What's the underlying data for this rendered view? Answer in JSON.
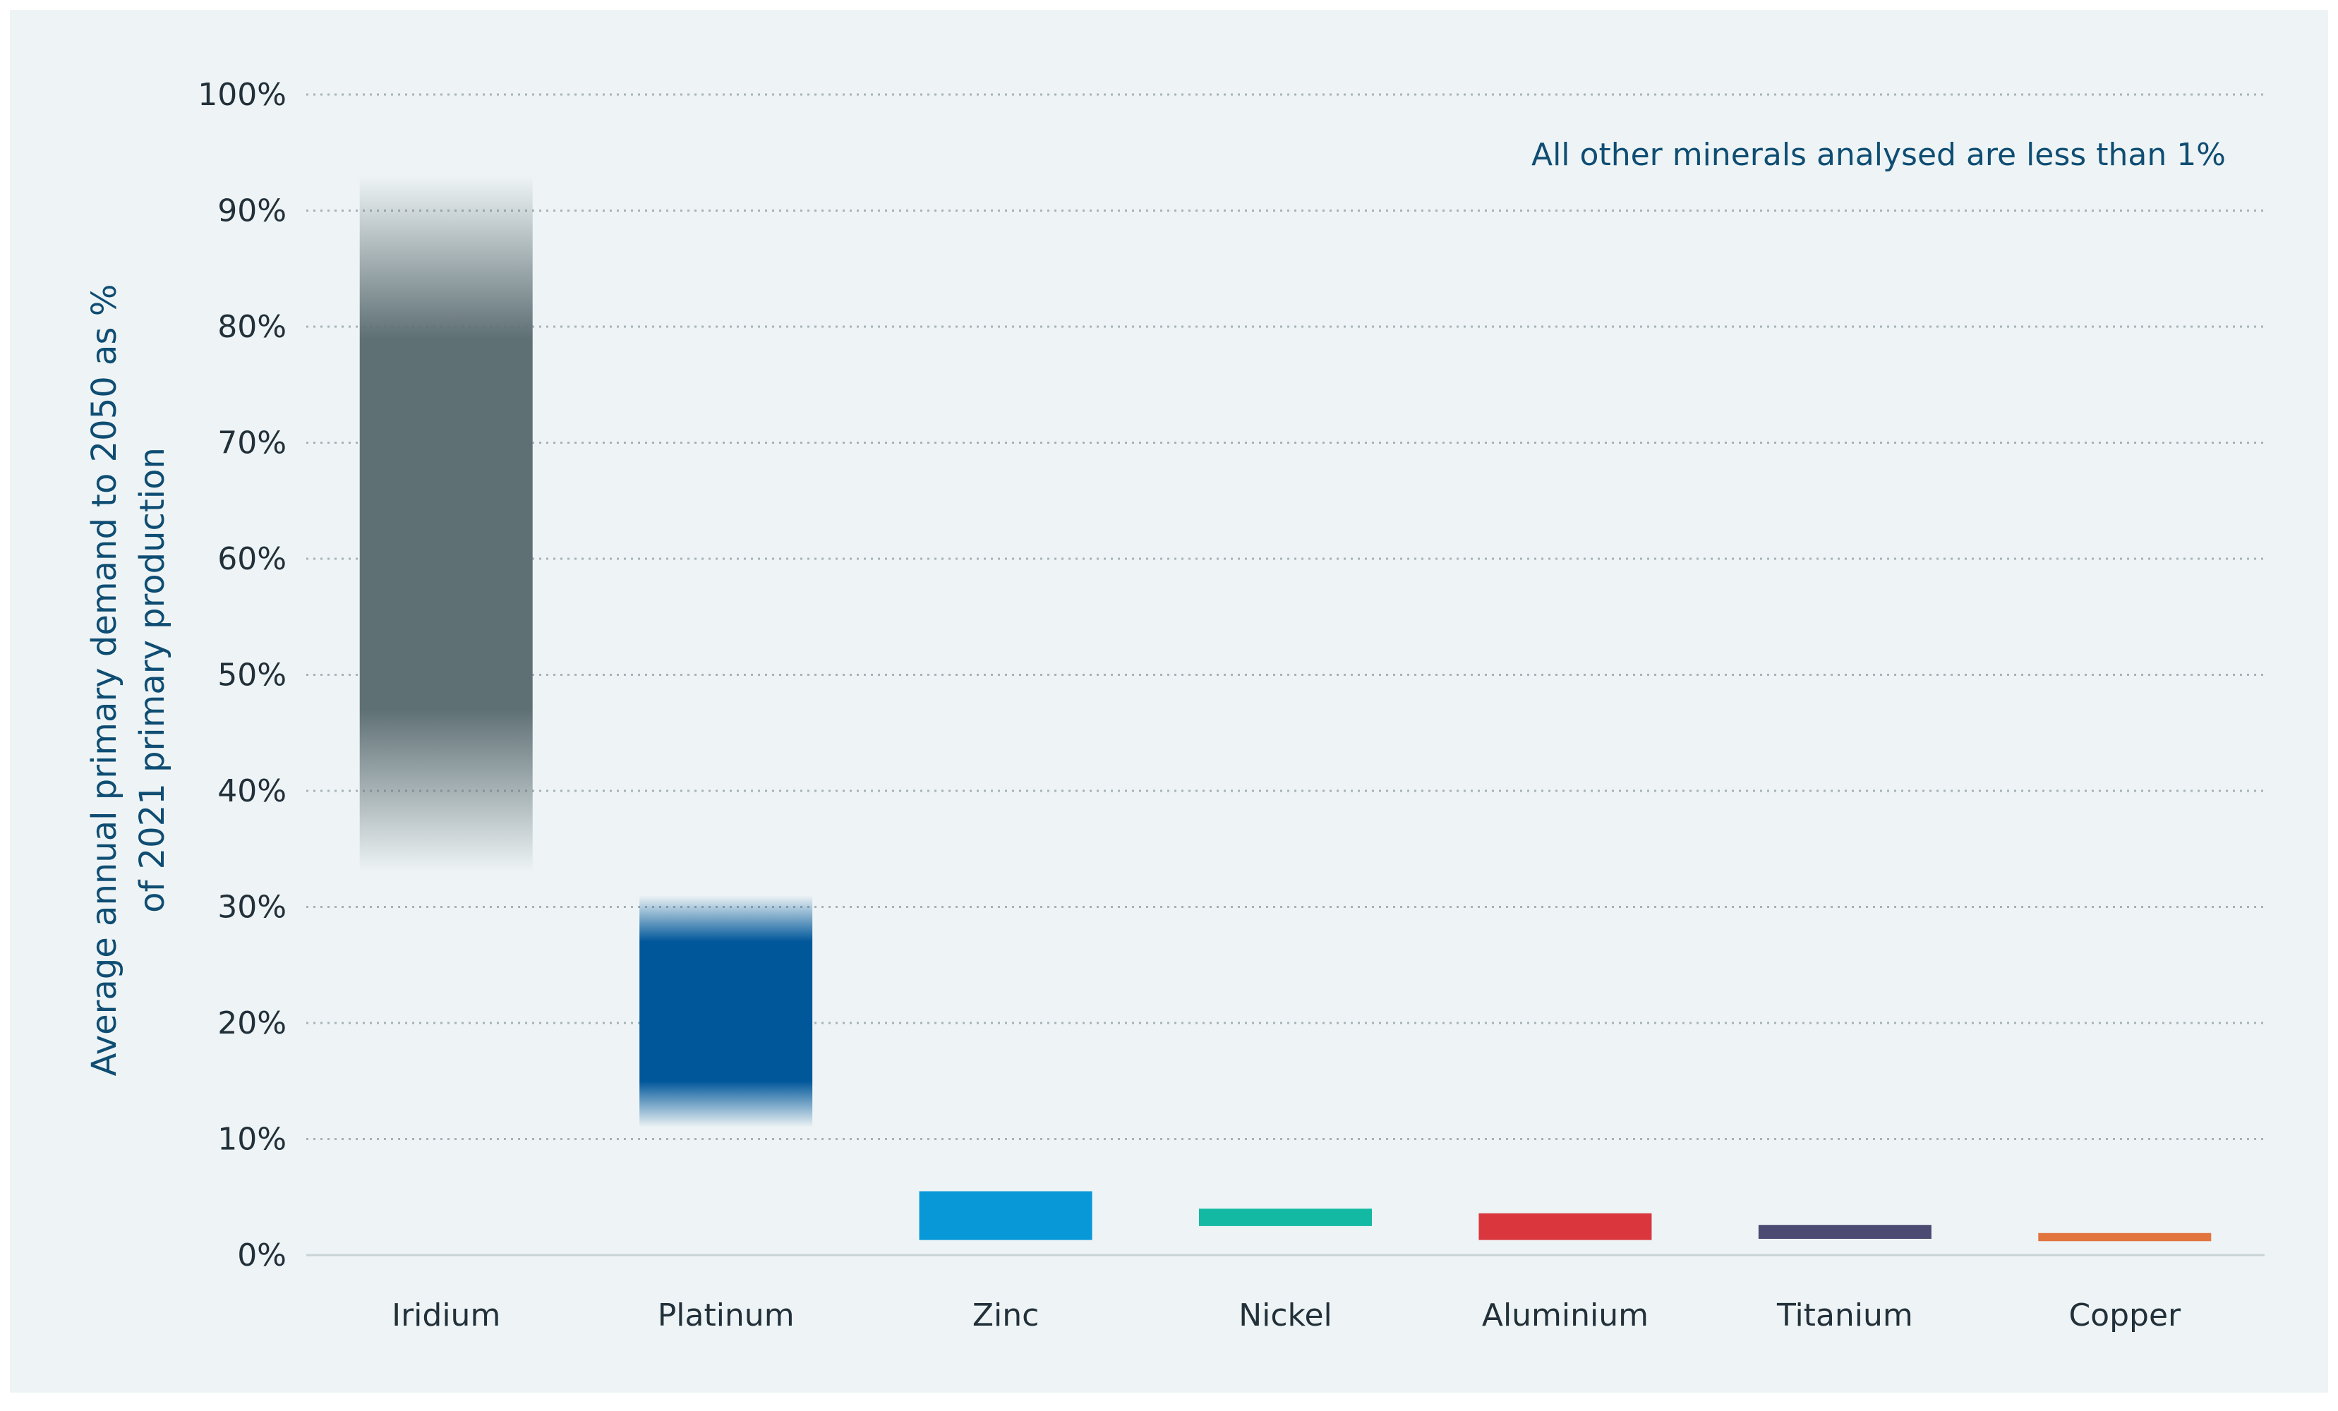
{
  "chart_data": {
    "type": "bar",
    "subtype": "range",
    "ylabel_lines": [
      "Average annual primary demand to 2050 as %",
      "of 2021 primary production"
    ],
    "xlabel": "",
    "ylim": [
      0,
      100
    ],
    "yticks": [
      "0%",
      "10%",
      "20%",
      "30%",
      "40%",
      "50%",
      "60%",
      "70%",
      "80%",
      "90%",
      "100%"
    ],
    "ytick_values": [
      0,
      10,
      20,
      30,
      40,
      50,
      60,
      70,
      80,
      90,
      100
    ],
    "grid": true,
    "annotation": "All other minerals analysed are less than 1%",
    "categories": [
      "Iridium",
      "Platinum",
      "Zinc",
      "Nickel",
      "Aluminium",
      "Titanium",
      "Copper"
    ],
    "ranges": [
      {
        "low": 33,
        "high": 93,
        "core_low": 47,
        "core_high": 79,
        "color": "#5f7075",
        "fade": true
      },
      {
        "low": 11,
        "high": 31,
        "core_low": 15,
        "core_high": 27,
        "color": "#00579a",
        "fade": true
      },
      {
        "low": 1.3,
        "high": 5.5,
        "core_low": 1.3,
        "core_high": 5.5,
        "color": "#0898d8",
        "fade": false
      },
      {
        "low": 2.5,
        "high": 4,
        "core_low": 2.5,
        "core_high": 4,
        "color": "#13b9a2",
        "fade": false
      },
      {
        "low": 1.3,
        "high": 3.6,
        "core_low": 1.3,
        "core_high": 3.6,
        "color": "#d9363e",
        "fade": false
      },
      {
        "low": 1.4,
        "high": 2.6,
        "core_low": 1.4,
        "core_high": 2.6,
        "color": "#4a4a72",
        "fade": false
      },
      {
        "low": 1.2,
        "high": 1.9,
        "core_low": 1.2,
        "core_high": 1.9,
        "color": "#e2743e",
        "fade": false
      }
    ]
  }
}
